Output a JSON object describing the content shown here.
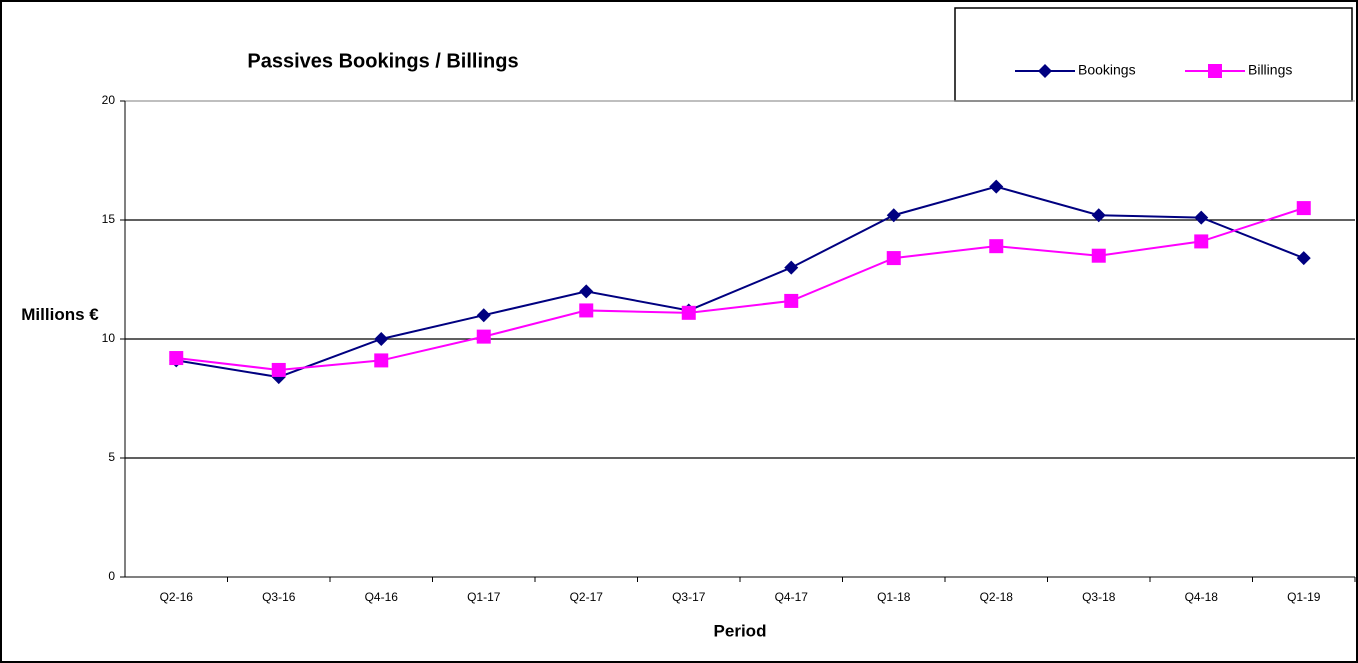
{
  "chart_data": {
    "type": "line",
    "title": "Passives Bookings / Billings",
    "x_label": "Period",
    "y_label": "Millions €",
    "categories": [
      "Q2-16",
      "Q3-16",
      "Q4-16",
      "Q1-17",
      "Q2-17",
      "Q3-17",
      "Q4-17",
      "Q1-18",
      "Q2-18",
      "Q3-18",
      "Q4-18",
      "Q1-19"
    ],
    "series": [
      {
        "name": "Bookings",
        "color": "#000080",
        "marker": "diamond",
        "values": [
          9.1,
          8.4,
          10.0,
          11.0,
          12.0,
          11.2,
          13.0,
          15.2,
          16.4,
          15.2,
          15.1,
          13.4
        ]
      },
      {
        "name": "Billings",
        "color": "#ff00ff",
        "marker": "square",
        "values": [
          9.2,
          8.7,
          9.1,
          10.1,
          11.2,
          11.1,
          11.6,
          13.4,
          13.9,
          13.5,
          14.1,
          15.5
        ]
      }
    ],
    "ylim": [
      0,
      20
    ],
    "yticks": [
      0,
      5,
      10,
      15,
      20
    ],
    "grid": true,
    "legend": "top-right"
  }
}
